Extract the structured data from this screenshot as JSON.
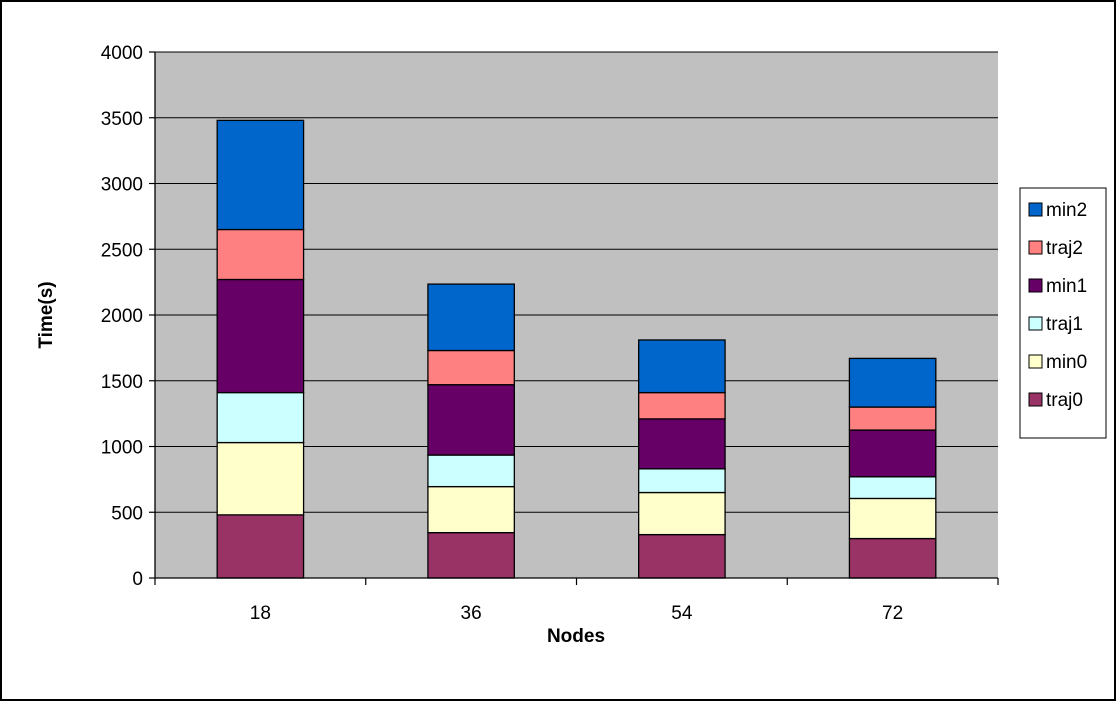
{
  "chart_data": {
    "type": "bar",
    "stacked": true,
    "categories": [
      "18",
      "36",
      "54",
      "72"
    ],
    "series": [
      {
        "name": "traj0",
        "color": "#993366",
        "values": [
          480,
          345,
          330,
          300
        ]
      },
      {
        "name": "min0",
        "color": "#FFFFCC",
        "values": [
          550,
          350,
          320,
          305
        ]
      },
      {
        "name": "traj1",
        "color": "#CCFFFF",
        "values": [
          380,
          240,
          180,
          165
        ]
      },
      {
        "name": "min1",
        "color": "#660066",
        "values": [
          860,
          535,
          380,
          355
        ]
      },
      {
        "name": "traj2",
        "color": "#FF8080",
        "values": [
          380,
          260,
          200,
          175
        ]
      },
      {
        "name": "min2",
        "color": "#0066CC",
        "values": [
          830,
          505,
          400,
          370
        ]
      }
    ],
    "xlabel": "Nodes",
    "ylabel": "Time(s)",
    "ylim": [
      0,
      4000
    ],
    "yticks": [
      "0",
      "500",
      "1000",
      "1500",
      "2000",
      "2500",
      "3000",
      "3500",
      "4000"
    ],
    "grid": true,
    "legend_position": "right",
    "legend_order": [
      "min2",
      "traj2",
      "min1",
      "traj1",
      "min0",
      "traj0"
    ],
    "plot_background": "#C0C0C0"
  }
}
